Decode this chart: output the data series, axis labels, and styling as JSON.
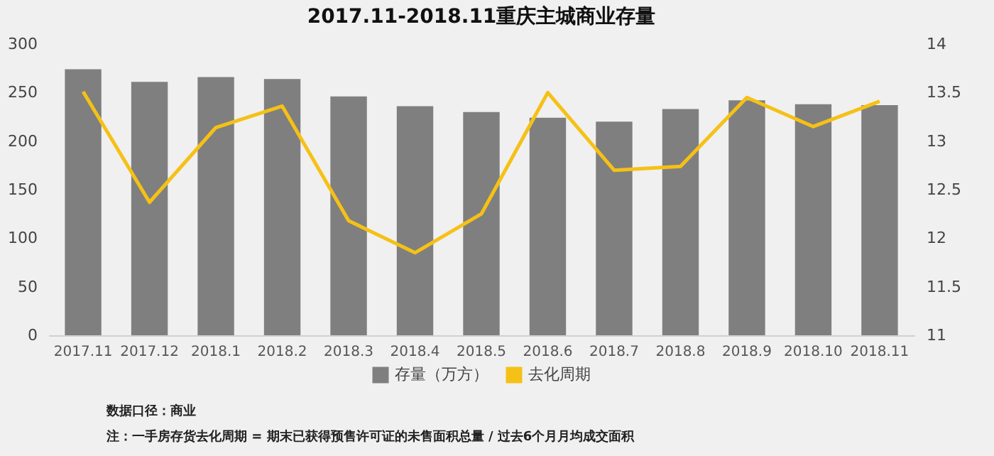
{
  "chart_data": {
    "type": "bar",
    "title": "2017.11-2018.11重庆主城商业存量",
    "categories": [
      "2017.11",
      "2017.12",
      "2018.1",
      "2018.2",
      "2018.3",
      "2018.4",
      "2018.5",
      "2018.6",
      "2018.7",
      "2018.8",
      "2018.9",
      "2018.10",
      "2018.11"
    ],
    "series": [
      {
        "name": "存量（万方）",
        "color": "#7f7f7f",
        "values": [
          274,
          261,
          266,
          264,
          246,
          236,
          230,
          224,
          220,
          233,
          242,
          238,
          237
        ]
      },
      {
        "name": "去化周期",
        "type": "line",
        "axis": "y2",
        "color": "#f5c116",
        "values": [
          13.51,
          12.37,
          13.14,
          13.36,
          12.18,
          11.85,
          12.25,
          13.5,
          12.7,
          12.74,
          13.45,
          13.15,
          13.41
        ]
      }
    ],
    "ylim": [
      0,
      300
    ],
    "yticks": [
      0,
      50,
      100,
      150,
      200,
      250,
      300
    ],
    "y2lim": [
      11,
      14
    ],
    "y2ticks": [
      11,
      11.5,
      12,
      12.5,
      13,
      13.5,
      14
    ],
    "legend": "bottom",
    "grid": false,
    "annotations": [
      "数据口径：商业",
      "注：一手房存货去化周期 = 期末已获得预售许可证的未售面积总量 / 过去6个月月均成交面积"
    ]
  }
}
